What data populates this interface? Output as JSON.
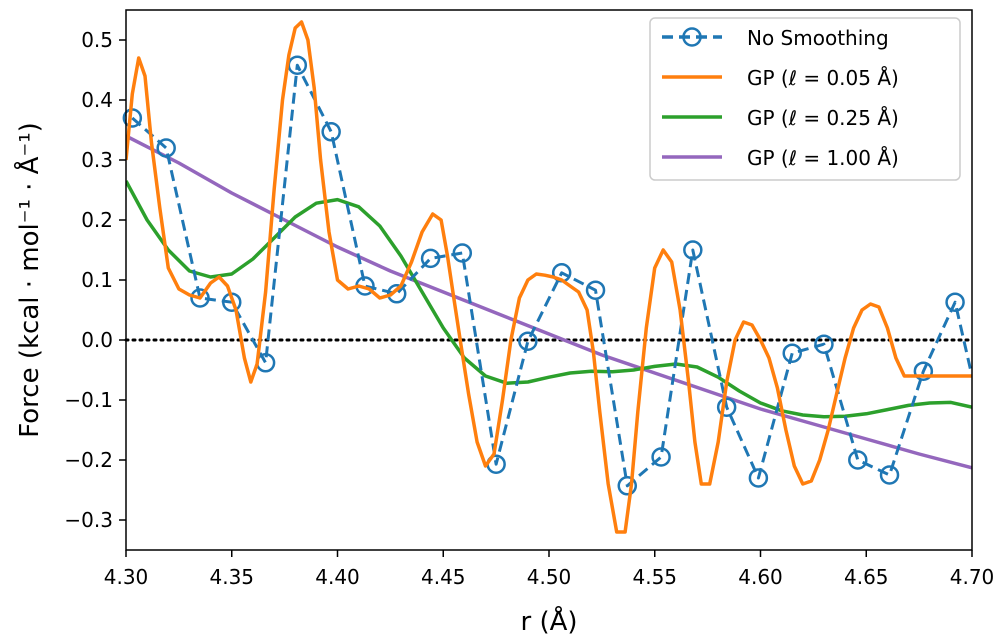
{
  "chart_data": {
    "type": "line",
    "title": "",
    "xlabel": "r (Å)",
    "ylabel": "Force (kcal · mol⁻¹ · Å⁻¹)",
    "xlim": [
      4.3,
      4.7
    ],
    "ylim": [
      -0.35,
      0.55
    ],
    "xticks": [
      4.3,
      4.35,
      4.4,
      4.45,
      4.5,
      4.55,
      4.6,
      4.65,
      4.7
    ],
    "xtick_labels": [
      "4.30",
      "4.35",
      "4.40",
      "4.45",
      "4.50",
      "4.55",
      "4.60",
      "4.65",
      "4.70"
    ],
    "yticks": [
      -0.3,
      -0.2,
      -0.1,
      0.0,
      0.1,
      0.2,
      0.3,
      0.4,
      0.5
    ],
    "ytick_labels": [
      "−0.3",
      "−0.2",
      "−0.1",
      "0.0",
      "0.1",
      "0.2",
      "0.3",
      "0.4",
      "0.5"
    ],
    "grid": false,
    "legend_position": "top-right",
    "reference_line": {
      "y": 0.0,
      "style": "dotted",
      "color": "#000000"
    },
    "series": [
      {
        "name": "No Smoothing",
        "color": "#1f77b4",
        "style": "dashed-markers",
        "x": [
          4.303,
          4.319,
          4.335,
          4.35,
          4.366,
          4.381,
          4.397,
          4.413,
          4.428,
          4.444,
          4.459,
          4.475,
          4.49,
          4.506,
          4.522,
          4.537,
          4.553,
          4.568,
          4.584,
          4.599,
          4.615,
          4.63,
          4.646,
          4.661,
          4.677,
          4.692,
          4.7
        ],
        "y": [
          0.37,
          0.32,
          0.07,
          0.063,
          -0.038,
          0.458,
          0.347,
          0.09,
          0.077,
          0.136,
          0.145,
          -0.207,
          -0.002,
          0.112,
          0.083,
          -0.243,
          -0.195,
          0.15,
          -0.112,
          -0.23,
          -0.022,
          -0.007,
          -0.2,
          -0.225,
          -0.052,
          0.063,
          -0.06
        ]
      },
      {
        "name": "GP (ℓ = 0.05 Å)",
        "color": "#ff7f0e",
        "style": "solid",
        "x": [
          4.3,
          4.303,
          4.306,
          4.309,
          4.312,
          4.316,
          4.32,
          4.325,
          4.33,
          4.335,
          4.34,
          4.344,
          4.348,
          4.352,
          4.356,
          4.359,
          4.362,
          4.366,
          4.37,
          4.374,
          4.377,
          4.38,
          4.383,
          4.386,
          4.389,
          4.392,
          4.396,
          4.4,
          4.405,
          4.41,
          4.415,
          4.42,
          4.425,
          4.43,
          4.435,
          4.44,
          4.445,
          4.449,
          4.452,
          4.455,
          4.458,
          4.462,
          4.466,
          4.47,
          4.474,
          4.478,
          4.482,
          4.486,
          4.49,
          4.494,
          4.498,
          4.502,
          4.506,
          4.51,
          4.514,
          4.518,
          4.521,
          4.524,
          4.528,
          4.532,
          4.536,
          4.539,
          4.542,
          4.546,
          4.55,
          4.554,
          4.558,
          4.562,
          4.566,
          4.569,
          4.572,
          4.576,
          4.58,
          4.584,
          4.588,
          4.592,
          4.596,
          4.6,
          4.604,
          4.608,
          4.612,
          4.616,
          4.62,
          4.624,
          4.628,
          4.632,
          4.636,
          4.64,
          4.644,
          4.648,
          4.652,
          4.656,
          4.66,
          4.664,
          4.668,
          4.672,
          4.676,
          4.68,
          4.684,
          4.688,
          4.692,
          4.696,
          4.7
        ],
        "y": [
          0.3,
          0.41,
          0.47,
          0.44,
          0.33,
          0.22,
          0.12,
          0.085,
          0.075,
          0.07,
          0.095,
          0.105,
          0.09,
          0.05,
          -0.03,
          -0.07,
          -0.04,
          0.08,
          0.25,
          0.4,
          0.475,
          0.52,
          0.53,
          0.5,
          0.42,
          0.3,
          0.18,
          0.1,
          0.085,
          0.09,
          0.085,
          0.07,
          0.075,
          0.09,
          0.13,
          0.18,
          0.21,
          0.2,
          0.14,
          0.07,
          0.0,
          -0.09,
          -0.17,
          -0.21,
          -0.19,
          -0.1,
          0.0,
          0.07,
          0.1,
          0.11,
          0.108,
          0.105,
          0.1,
          0.09,
          0.08,
          0.05,
          -0.02,
          -0.12,
          -0.24,
          -0.32,
          -0.32,
          -0.24,
          -0.12,
          0.02,
          0.12,
          0.15,
          0.13,
          0.05,
          -0.07,
          -0.17,
          -0.24,
          -0.24,
          -0.17,
          -0.07,
          0.0,
          0.03,
          0.025,
          0.0,
          -0.03,
          -0.08,
          -0.15,
          -0.21,
          -0.24,
          -0.235,
          -0.2,
          -0.15,
          -0.09,
          -0.03,
          0.02,
          0.05,
          0.06,
          0.055,
          0.02,
          -0.03,
          -0.06,
          -0.06,
          -0.06,
          -0.06,
          -0.06,
          -0.06,
          -0.06,
          -0.06,
          -0.06
        ]
      },
      {
        "name": "GP (ℓ = 0.25 Å)",
        "color": "#2ca02c",
        "style": "solid",
        "x": [
          4.3,
          4.31,
          4.32,
          4.33,
          4.34,
          4.35,
          4.36,
          4.37,
          4.38,
          4.39,
          4.4,
          4.41,
          4.42,
          4.43,
          4.44,
          4.45,
          4.46,
          4.47,
          4.48,
          4.49,
          4.5,
          4.51,
          4.52,
          4.53,
          4.54,
          4.55,
          4.56,
          4.57,
          4.58,
          4.59,
          4.6,
          4.61,
          4.62,
          4.63,
          4.64,
          4.65,
          4.66,
          4.67,
          4.68,
          4.69,
          4.7
        ],
        "y": [
          0.265,
          0.2,
          0.15,
          0.115,
          0.105,
          0.11,
          0.135,
          0.17,
          0.205,
          0.228,
          0.234,
          0.222,
          0.19,
          0.14,
          0.08,
          0.02,
          -0.03,
          -0.06,
          -0.072,
          -0.07,
          -0.062,
          -0.055,
          -0.052,
          -0.053,
          -0.05,
          -0.044,
          -0.04,
          -0.045,
          -0.062,
          -0.085,
          -0.105,
          -0.118,
          -0.125,
          -0.128,
          -0.127,
          -0.123,
          -0.116,
          -0.109,
          -0.105,
          -0.104,
          -0.112
        ]
      },
      {
        "name": "GP (ℓ = 1.00 Å)",
        "color": "#9467bd",
        "style": "solid",
        "x": [
          4.3,
          4.325,
          4.35,
          4.375,
          4.4,
          4.425,
          4.45,
          4.475,
          4.5,
          4.525,
          4.55,
          4.575,
          4.6,
          4.625,
          4.65,
          4.675,
          4.7
        ],
        "y": [
          0.34,
          0.295,
          0.245,
          0.2,
          0.155,
          0.115,
          0.08,
          0.045,
          0.01,
          -0.025,
          -0.055,
          -0.085,
          -0.115,
          -0.14,
          -0.165,
          -0.19,
          -0.213
        ]
      }
    ]
  }
}
